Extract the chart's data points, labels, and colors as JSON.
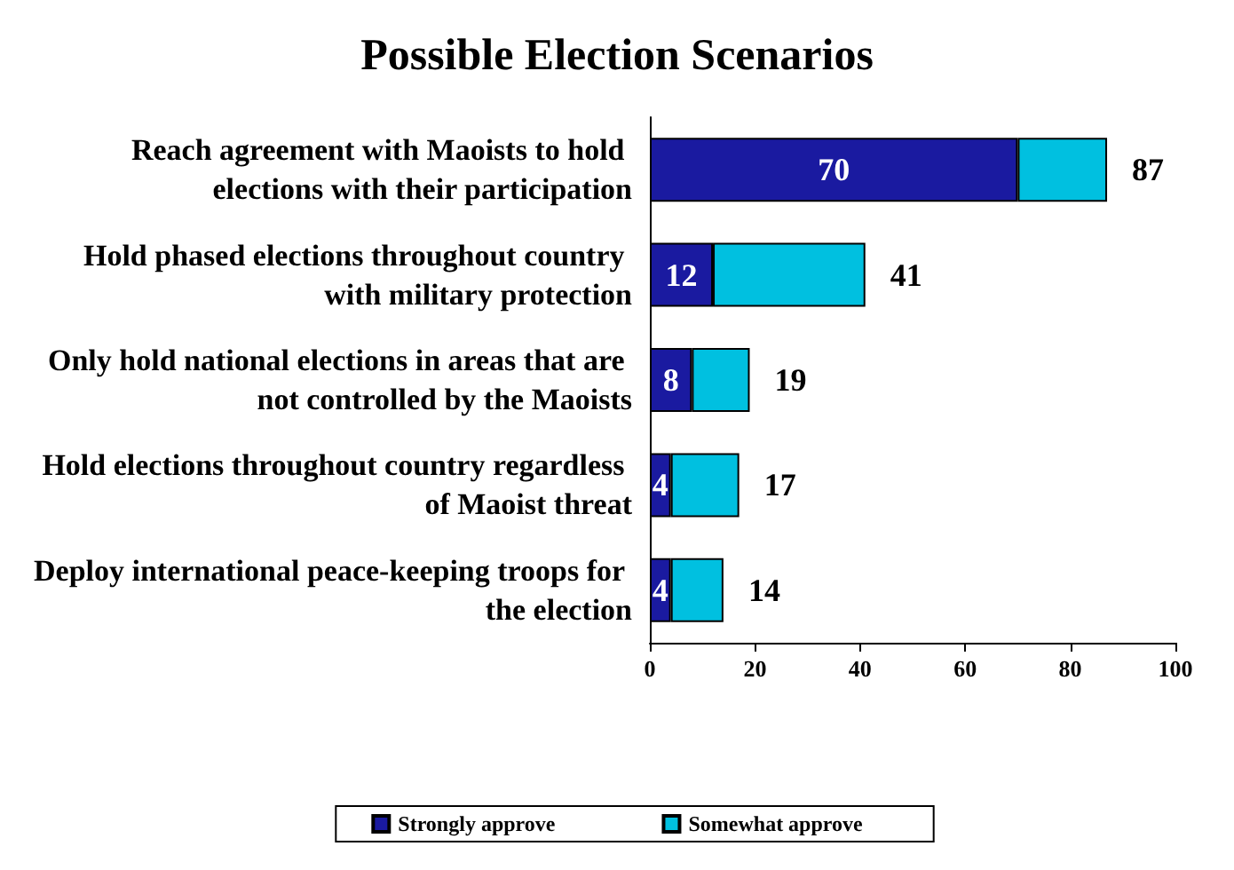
{
  "chart_data": {
    "type": "bar",
    "title": "Possible Election Scenarios",
    "orientation": "horizontal",
    "stacked": true,
    "categories": [
      "Reach agreement with Maoists to hold elections with their participation",
      "Hold phased elections throughout country with military protection",
      "Only hold national elections in areas that are not controlled by the Maoists",
      "Hold elections throughout country regardless of Maoist threat",
      "Deploy international peace-keeping troops for the election"
    ],
    "series": [
      {
        "name": "Strongly approve",
        "color": "#1a1aa0",
        "values": [
          70,
          12,
          8,
          4,
          4
        ],
        "value_labels": [
          "70",
          "12",
          "8",
          "4",
          "4"
        ]
      },
      {
        "name": "Somewhat approve",
        "color": "#00c0e0",
        "values": [
          17,
          29,
          11,
          13,
          10
        ]
      }
    ],
    "totals": [
      "87",
      "41",
      "19",
      "17",
      "14"
    ],
    "xlim": [
      0,
      100
    ],
    "xticks": [
      0,
      20,
      40,
      60,
      80,
      100
    ],
    "grid": false,
    "legend": "bottom"
  }
}
